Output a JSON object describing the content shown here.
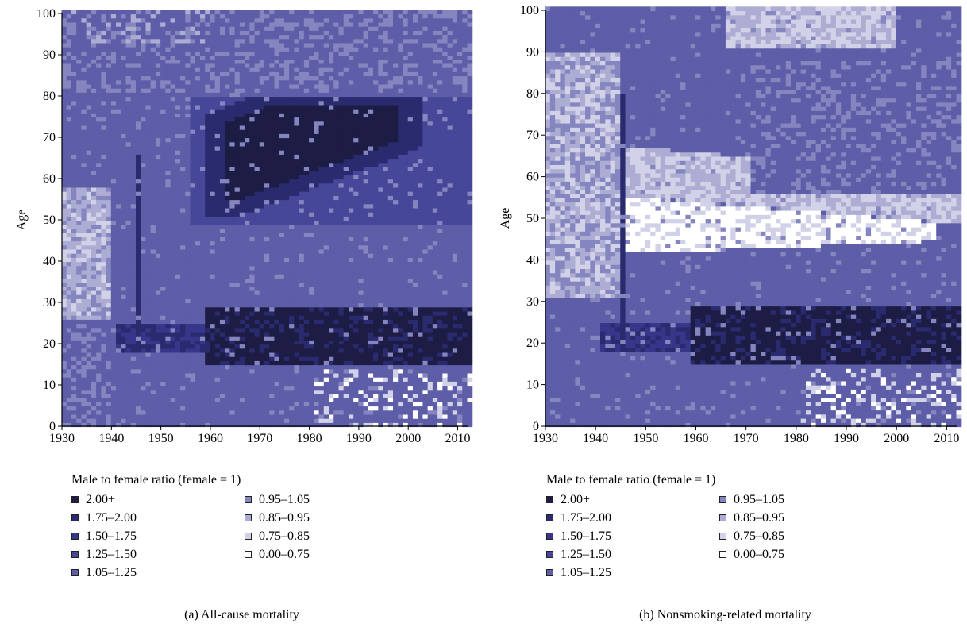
{
  "chart_data": [
    {
      "type": "heatmap",
      "subtitle": "(a)  All-cause mortality",
      "xlabel": "",
      "ylabel": "Age",
      "xlim": [
        1930,
        2012
      ],
      "ylim": [
        0,
        100
      ],
      "xticks": [
        "1930",
        "1940",
        "1950",
        "1960",
        "1970",
        "1980",
        "1990",
        "2000",
        "2010"
      ],
      "yticks": [
        "0",
        "10",
        "20",
        "30",
        "40",
        "50",
        "60",
        "70",
        "80",
        "90",
        "100"
      ],
      "legend_title": "Male to female ratio (female = 1)",
      "bins": [
        {
          "label": "2.00+",
          "color": "#1c1c44"
        },
        {
          "label": "1.75–2.00",
          "color": "#2a2a6e"
        },
        {
          "label": "1.50–1.75",
          "color": "#36368a"
        },
        {
          "label": "1.25–1.50",
          "color": "#474799"
        },
        {
          "label": "1.05–1.25",
          "color": "#5d5da8"
        },
        {
          "label": "0.95–1.05",
          "color": "#8585c0"
        },
        {
          "label": "0.85–0.95",
          "color": "#adadd4"
        },
        {
          "label": "0.75–0.85",
          "color": "#d1d1e8"
        },
        {
          "label": "0.00–0.75",
          "color": "#ffffff"
        }
      ],
      "regions": [
        {
          "bin": "2.00+",
          "desc": "ages 55-77, years 1962-1998"
        },
        {
          "bin": "2.00+",
          "desc": "ages 15-28, years 1957-2012"
        },
        {
          "bin": "1.05–1.25",
          "desc": "ages 25-55, years 1930-1940 (mixed with 0.85-0.95)"
        }
      ]
    },
    {
      "type": "heatmap",
      "subtitle": "(b)  Nonsmoking-related mortality",
      "xlabel": "",
      "ylabel": "Age",
      "xlim": [
        1930,
        2012
      ],
      "ylim": [
        0,
        100
      ],
      "xticks": [
        "1930",
        "1940",
        "1950",
        "1960",
        "1970",
        "1980",
        "1990",
        "2000",
        "2010"
      ],
      "yticks": [
        "0",
        "10",
        "20",
        "30",
        "40",
        "50",
        "60",
        "70",
        "80",
        "90",
        "100"
      ],
      "legend_title": "Male to female ratio (female = 1)",
      "bins": [
        {
          "label": "2.00+",
          "color": "#1c1c44"
        },
        {
          "label": "1.75–2.00",
          "color": "#2a2a6e"
        },
        {
          "label": "1.50–1.75",
          "color": "#36368a"
        },
        {
          "label": "1.25–1.50",
          "color": "#474799"
        },
        {
          "label": "1.05–1.25",
          "color": "#5d5da8"
        },
        {
          "label": "0.95–1.05",
          "color": "#8585c0"
        },
        {
          "label": "0.85–0.95",
          "color": "#adadd4"
        },
        {
          "label": "0.75–0.85",
          "color": "#d1d1e8"
        },
        {
          "label": "0.00–0.75",
          "color": "#ffffff"
        }
      ],
      "regions": [
        {
          "bin": "0.00–0.75",
          "desc": "ages 40-55, years 1945-2005"
        },
        {
          "bin": "2.00+",
          "desc": "ages 15-28, years 1957-2012"
        },
        {
          "bin": "0.85–0.95",
          "desc": "ages 90-100, years 1965-2000"
        }
      ]
    }
  ]
}
